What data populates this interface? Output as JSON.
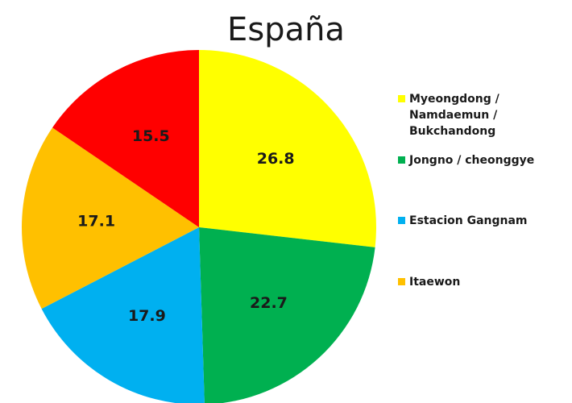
{
  "colors": {
    "myeongdong": "#FFFF00",
    "jongno": "#00B050",
    "gangnam": "#00B0F0",
    "itaewon": "#FFC000",
    "other": "#FF0000"
  },
  "chart_data": {
    "type": "pie",
    "title": "España",
    "slices": [
      {
        "name": "Myeongdong / Namdaemun / Bukchandong",
        "value": 26.8,
        "label": "26.8",
        "color": "#FFFF00"
      },
      {
        "name": "Jongno / cheonggye",
        "value": 22.7,
        "label": "22.7",
        "color": "#00B050"
      },
      {
        "name": "Estacion Gangnam",
        "value": 17.9,
        "label": "17.9",
        "color": "#00B0F0"
      },
      {
        "name": "Itaewon",
        "value": 17.1,
        "label": "17.1",
        "color": "#FFC000"
      },
      {
        "name": "",
        "value": 15.5,
        "label": "15.5",
        "color": "#FF0000"
      }
    ],
    "legend": {
      "placement": "right",
      "entries": [
        {
          "label": "Myeongdong /\nNamdaemun /\nBukchandong",
          "color": "#FFFF00"
        },
        {
          "label": "Jongno / cheonggye",
          "color": "#00B050"
        },
        {
          "label": "Estacion Gangnam",
          "color": "#00B0F0"
        },
        {
          "label": "Itaewon",
          "color": "#FFC000"
        }
      ]
    }
  }
}
